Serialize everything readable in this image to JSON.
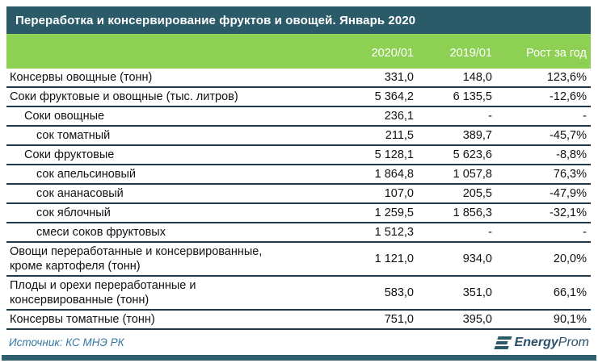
{
  "title": "Переработка и консервирование фруктов и овощей. Январь 2020",
  "chart_data": {
    "type": "table",
    "columns": [
      "2020/01",
      "2019/01",
      "Рост за год"
    ],
    "rows": [
      {
        "label": "Консервы овощные (тонн)",
        "indent": 0,
        "v2020": "331,0",
        "v2019": "148,0",
        "growth": "123,6%"
      },
      {
        "label": "Соки фруктовые и овощные (тыс. литров)",
        "indent": 0,
        "v2020": "5 364,2",
        "v2019": "6 135,5",
        "growth": "-12,6%"
      },
      {
        "label": "Соки овощные",
        "indent": 1,
        "v2020": "236,1",
        "v2019": "-",
        "growth": "-"
      },
      {
        "label": "сок томатный",
        "indent": 2,
        "v2020": "211,5",
        "v2019": "389,7",
        "growth": "-45,7%"
      },
      {
        "label": "Соки фруктовые",
        "indent": 1,
        "v2020": "5 128,1",
        "v2019": "5 623,6",
        "growth": "-8,8%"
      },
      {
        "label": "сок апельсиновый",
        "indent": 2,
        "v2020": "1 864,8",
        "v2019": "1 057,8",
        "growth": "76,3%"
      },
      {
        "label": "сок ананасовый",
        "indent": 2,
        "v2020": "107,0",
        "v2019": "205,5",
        "growth": "-47,9%"
      },
      {
        "label": "сок яблочный",
        "indent": 2,
        "v2020": "1 259,5",
        "v2019": "1 856,3",
        "growth": "-32,1%"
      },
      {
        "label": "смеси соков фруктовых",
        "indent": 2,
        "v2020": "1 512,3",
        "v2019": "-",
        "growth": "-"
      },
      {
        "label": "Овощи переработанные и консервированные,\nкроме картофеля (тонн)",
        "indent": 0,
        "v2020": "1 121,0",
        "v2019": "934,0",
        "growth": "20,0%"
      },
      {
        "label": "Плоды и орехи переработанные и\nконсервированные (тонн)",
        "indent": 0,
        "v2020": "583,0",
        "v2019": "351,0",
        "growth": "66,1%"
      },
      {
        "label": "Консервы томатные (тонн)",
        "indent": 0,
        "v2020": "751,0",
        "v2019": "395,0",
        "growth": "90,1%"
      }
    ]
  },
  "footer": {
    "source": "Источник: КС МНЭ РК",
    "logo_bold": "Energy",
    "logo_regular": "Prom"
  },
  "colors": {
    "title_bar_bg": "#2B5A68",
    "header_bg": "#8ED054",
    "row_divider": "#1B3A4A",
    "source_text": "#3578A0",
    "logo": "#2B5068",
    "bottom_bar": "#2E616D"
  }
}
